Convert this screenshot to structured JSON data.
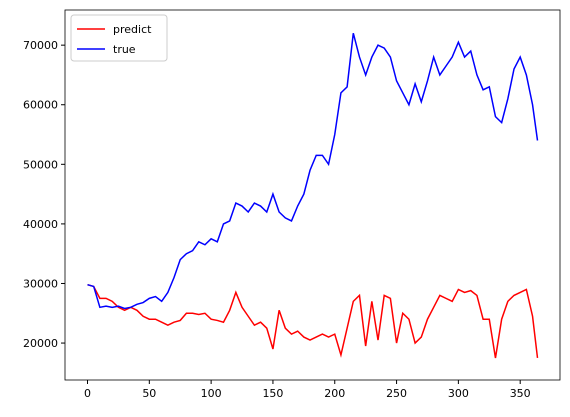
{
  "chart_data": {
    "type": "line",
    "x": [
      0,
      5,
      10,
      15,
      20,
      25,
      30,
      35,
      40,
      45,
      50,
      55,
      60,
      65,
      70,
      75,
      80,
      85,
      90,
      95,
      100,
      105,
      110,
      115,
      120,
      125,
      130,
      135,
      140,
      145,
      150,
      155,
      160,
      165,
      170,
      175,
      180,
      185,
      190,
      195,
      200,
      205,
      210,
      215,
      220,
      225,
      230,
      235,
      240,
      245,
      250,
      255,
      260,
      265,
      270,
      275,
      280,
      285,
      290,
      295,
      300,
      305,
      310,
      315,
      320,
      325,
      330,
      335,
      340,
      345,
      350,
      355,
      360,
      364
    ],
    "series": [
      {
        "name": "predict",
        "color": "#ff0000",
        "values": [
          29800,
          29500,
          27500,
          27500,
          27000,
          26000,
          25500,
          26000,
          25500,
          24500,
          24000,
          24000,
          23500,
          23000,
          23500,
          23800,
          25000,
          25000,
          24800,
          25000,
          24000,
          23800,
          23500,
          25500,
          28500,
          26000,
          24500,
          23000,
          23500,
          22500,
          19000,
          25500,
          22500,
          21500,
          22000,
          21000,
          20500,
          21000,
          21500,
          21000,
          21500,
          18000,
          22500,
          27000,
          28000,
          19500,
          27000,
          20500,
          28000,
          27500,
          20000,
          25000,
          24000,
          20000,
          21000,
          24000,
          26000,
          28000,
          27500,
          27000,
          29000,
          28500,
          28800,
          28000,
          24000,
          24000,
          17500,
          24000,
          27000,
          28000,
          28500,
          29000,
          24500,
          17500
        ]
      },
      {
        "name": "true",
        "color": "#0000ff",
        "values": [
          29800,
          29500,
          26000,
          26200,
          26000,
          26200,
          25800,
          26000,
          26500,
          26800,
          27500,
          27800,
          27000,
          28500,
          31000,
          34000,
          35000,
          35500,
          37000,
          36500,
          37500,
          37000,
          40000,
          40500,
          43500,
          43000,
          42000,
          43500,
          43000,
          42000,
          45000,
          42000,
          41000,
          40500,
          43000,
          45000,
          49000,
          51500,
          51500,
          50000,
          55000,
          62000,
          63000,
          72000,
          68000,
          65000,
          68000,
          70000,
          69500,
          68000,
          64000,
          62000,
          60000,
          63500,
          60500,
          64000,
          68000,
          65000,
          66500,
          68000,
          70500,
          68000,
          69000,
          65000,
          62500,
          63000,
          58000,
          57000,
          61000,
          66000,
          68000,
          65000,
          60000,
          54000
        ]
      }
    ],
    "xlim": [
      -18.2,
      382.2
    ],
    "ylim": [
      13800,
      75900
    ],
    "xticks": [
      0,
      50,
      100,
      150,
      200,
      250,
      300,
      350
    ],
    "yticks": [
      20000,
      30000,
      40000,
      50000,
      60000,
      70000
    ],
    "legend": "upper left"
  }
}
